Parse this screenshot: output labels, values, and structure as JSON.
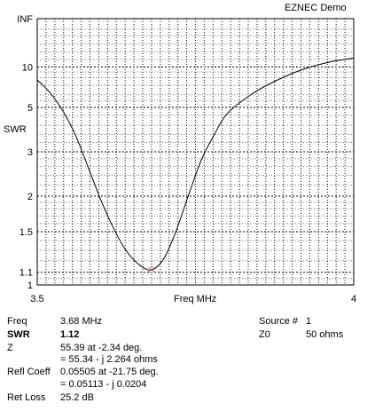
{
  "window": {
    "title": "EZNEC Demo"
  },
  "chart_data": {
    "type": "line",
    "title": "",
    "xlabel": "Freq MHz",
    "ylabel": "SWR",
    "xlim": [
      3.5,
      4
    ],
    "x_ticks": [
      "3.5",
      "4"
    ],
    "y_scale": "swr",
    "y_ticks": [
      "INF",
      "10",
      "5",
      "3",
      "2",
      "1.5",
      "1.1",
      "1"
    ],
    "grid": true,
    "series": [
      {
        "x": [
          3.5,
          3.52,
          3.54,
          3.56,
          3.58,
          3.6,
          3.62,
          3.64,
          3.66,
          3.68,
          3.7,
          3.72,
          3.74,
          3.76,
          3.78,
          3.8,
          3.84,
          3.88,
          3.92,
          3.96,
          4.0
        ],
        "y": [
          7.7,
          6.2,
          4.8,
          3.6,
          2.6,
          1.95,
          1.55,
          1.3,
          1.17,
          1.12,
          1.22,
          1.52,
          2.05,
          2.8,
          3.6,
          4.6,
          6.1,
          7.7,
          9.5,
          11.2,
          12.5
        ]
      }
    ],
    "marker": {
      "x": 3.68,
      "y": 1.12
    },
    "colors": {
      "line": "#000000",
      "grid": "#000000",
      "marker": "#c88888",
      "background": "#ffffff"
    }
  },
  "readout": {
    "freq_label": "Freq",
    "freq_value": "3.68 MHz",
    "swr_label": "SWR",
    "swr_value": "1.12",
    "z_label": "Z",
    "z_value1": "55.39 at -2.34 deg.",
    "z_value2": "= 55.34 - j 2.264 ohms",
    "refl_label": "Refl Coeff",
    "refl_value1": "0.05505 at -21.75 deg.",
    "refl_value2": "= 0.05113 - j 0.0204",
    "retloss_label": "Ret Loss",
    "retloss_value": "25.2 dB",
    "source_label": "Source #",
    "source_value": "1",
    "z0_label": "Z0",
    "z0_value": "50 ohms"
  }
}
